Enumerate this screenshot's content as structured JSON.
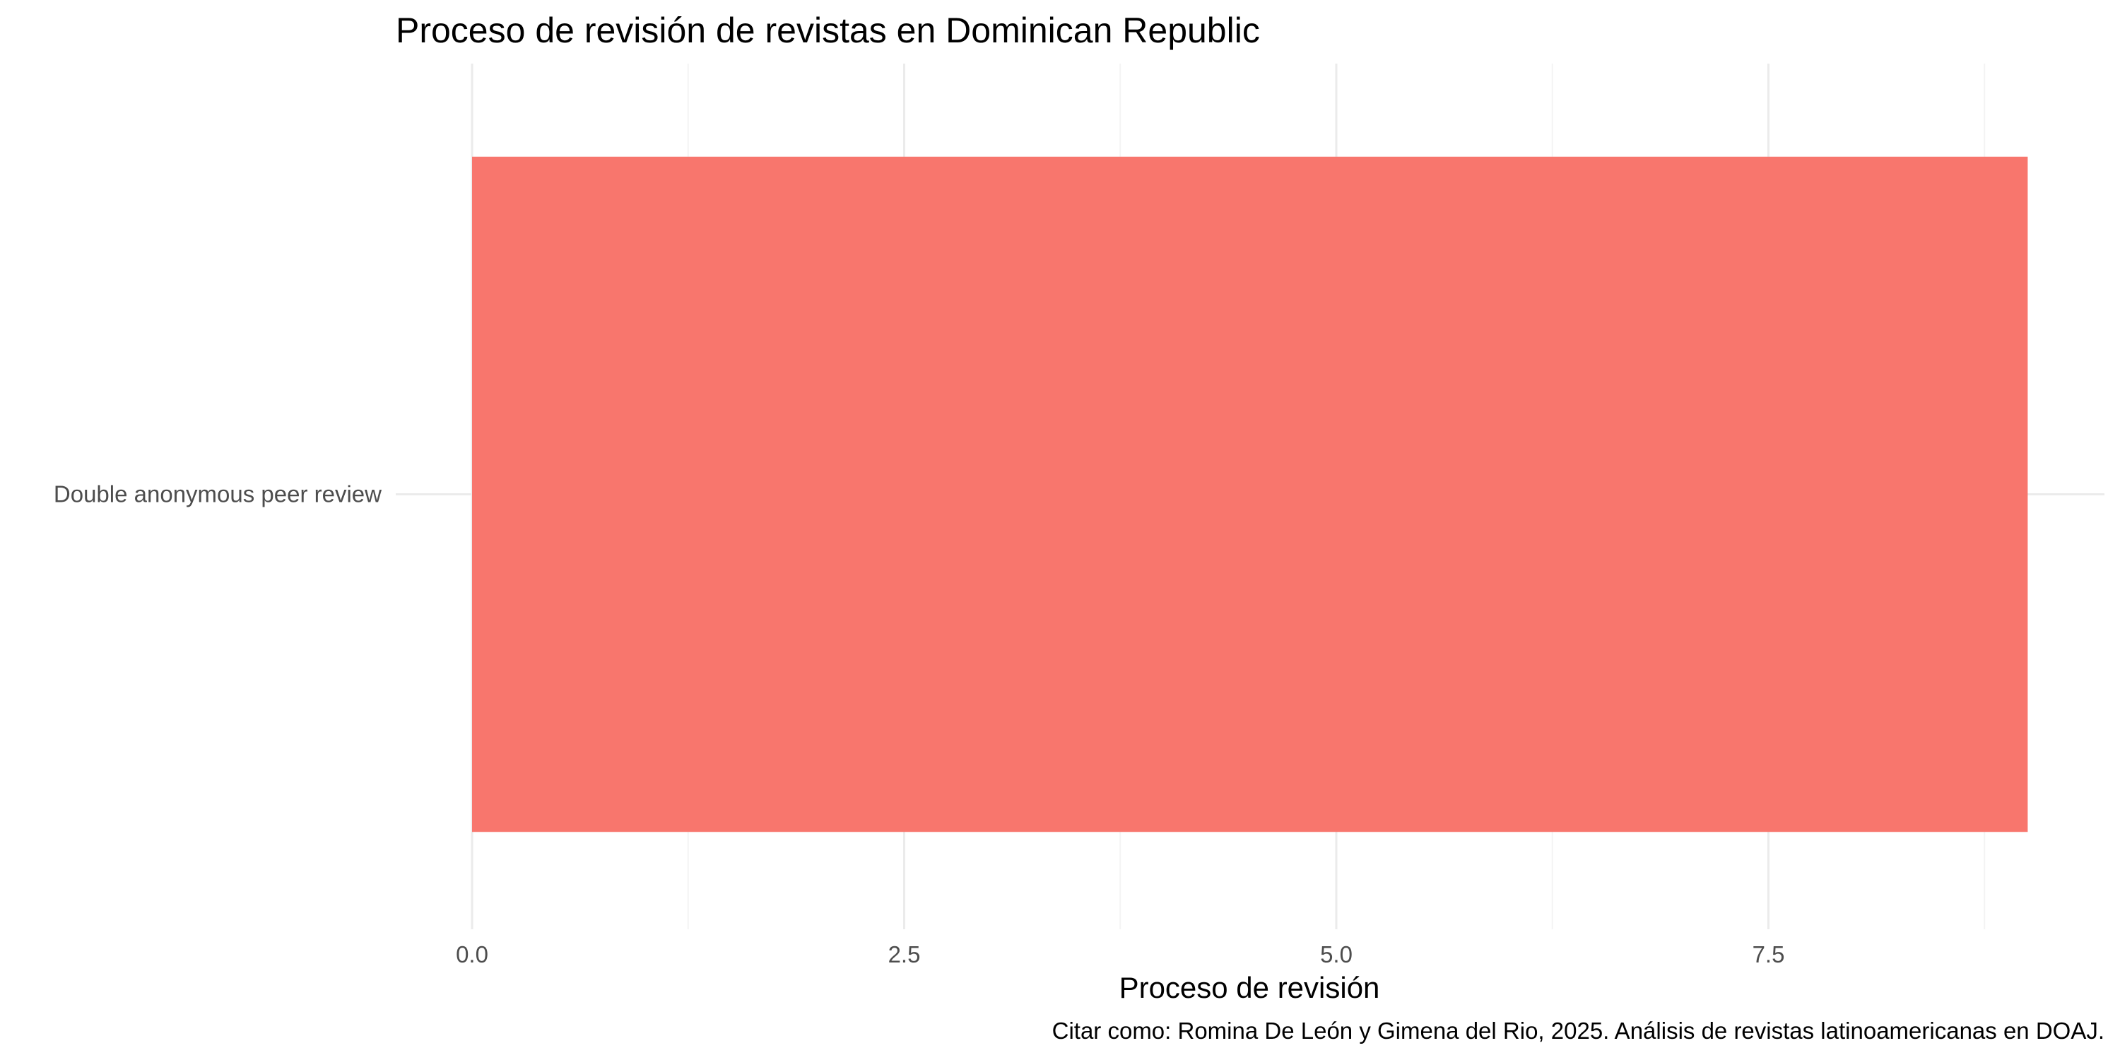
{
  "chart_data": {
    "type": "bar",
    "orientation": "horizontal",
    "title": "Proceso de revisión de revistas en Dominican Republic",
    "xlabel": "Proceso de revisión",
    "ylabel": "",
    "caption": "Citar como: Romina De León y Gimena del Rio, 2025. Análisis de revistas latinoamericanas en DOAJ.",
    "categories": [
      "Double anonymous peer review"
    ],
    "values": [
      9
    ],
    "x_ticks": [
      "0.0",
      "2.5",
      "5.0",
      "7.5"
    ],
    "x_tick_values": [
      0,
      2.5,
      5,
      7.5
    ],
    "xlim": [
      0,
      9.45
    ],
    "grid": true,
    "legend": "none",
    "colors": {
      "bar": "#F8766D",
      "grid_major": "#ebebeb",
      "grid_minor": "#f4f4f4",
      "background": "#ffffff"
    }
  }
}
